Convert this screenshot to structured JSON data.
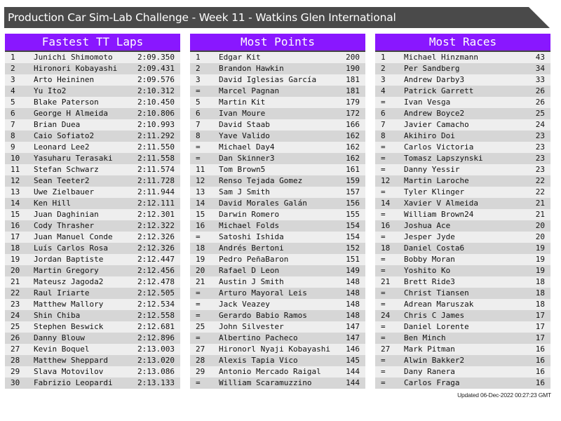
{
  "title": "Production Car Sim-Lab Challenge - Week 11 - Watkins Glen International",
  "colors": {
    "header": "#8917ff",
    "titlebar": "#4a4a4a"
  },
  "panels": [
    {
      "heading": "Fastest TT Laps",
      "rows": [
        [
          "1",
          "Junichi Shimomoto",
          "2:09.350"
        ],
        [
          "2",
          "Hironori Kobayashi",
          "2:09.431"
        ],
        [
          "3",
          "Arto Heininen",
          "2:09.576"
        ],
        [
          "4",
          "Yu Ito2",
          "2:10.312"
        ],
        [
          "5",
          "Blake Paterson",
          "2:10.450"
        ],
        [
          "6",
          "George H Almeida",
          "2:10.806"
        ],
        [
          "7",
          "Brian Duea",
          "2:10.993"
        ],
        [
          "8",
          "Caio Sofiato2",
          "2:11.292"
        ],
        [
          "9",
          "Leonard Lee2",
          "2:11.550"
        ],
        [
          "10",
          "Yasuharu Terasaki",
          "2:11.558"
        ],
        [
          "11",
          "Stefan Schwarz",
          "2:11.574"
        ],
        [
          "12",
          "Sean Teeter2",
          "2:11.728"
        ],
        [
          "13",
          "Uwe Zielbauer",
          "2:11.944"
        ],
        [
          "14",
          "Ken Hill",
          "2:12.111"
        ],
        [
          "15",
          "Juan Daghinian",
          "2:12.301"
        ],
        [
          "16",
          "Cody Thrasher",
          "2:12.322"
        ],
        [
          "17",
          "Juan Manuel Conde",
          "2:12.326"
        ],
        [
          "18",
          "Luís Carlos Rosa",
          "2:12.326"
        ],
        [
          "19",
          "Jordan Baptiste",
          "2:12.447"
        ],
        [
          "20",
          "Martin Gregory",
          "2:12.456"
        ],
        [
          "21",
          "Mateusz Jagoda2",
          "2:12.478"
        ],
        [
          "22",
          "Raul Iriarte",
          "2:12.505"
        ],
        [
          "23",
          "Matthew Mallory",
          "2:12.534"
        ],
        [
          "24",
          "Shin Chiba",
          "2:12.558"
        ],
        [
          "25",
          "Stephen Beswick",
          "2:12.681"
        ],
        [
          "26",
          "Danny Blouw",
          "2:12.896"
        ],
        [
          "27",
          "Kevin Boquel",
          "2:13.003"
        ],
        [
          "28",
          "Matthew Sheppard",
          "2:13.020"
        ],
        [
          "29",
          "Slava Motovilov",
          "2:13.086"
        ],
        [
          "30",
          "Fabrizio Leopardi",
          "2:13.133"
        ]
      ]
    },
    {
      "heading": "Most Points",
      "rows": [
        [
          "1",
          "Edgar Kit",
          "200"
        ],
        [
          "2",
          "Brandon Hawkin",
          "190"
        ],
        [
          "3",
          "David Iglesias García",
          "181"
        ],
        [
          "=",
          "Marcel Pagnan",
          "181"
        ],
        [
          "5",
          "Martin Kit",
          "179"
        ],
        [
          "6",
          "Ivan Moure",
          "172"
        ],
        [
          "7",
          "David Staab",
          "166"
        ],
        [
          "8",
          "Yave Valido",
          "162"
        ],
        [
          "=",
          "Michael Day4",
          "162"
        ],
        [
          "=",
          "Dan Skinner3",
          "162"
        ],
        [
          "11",
          "Tom Brown5",
          "161"
        ],
        [
          "12",
          "Renso Tejada Gomez",
          "159"
        ],
        [
          "13",
          "Sam J Smith",
          "157"
        ],
        [
          "14",
          "David Morales Galán",
          "156"
        ],
        [
          "15",
          "Darwin Romero",
          "155"
        ],
        [
          "16",
          "Michael Folds",
          "154"
        ],
        [
          "=",
          "Satoshi Ishida",
          "154"
        ],
        [
          "18",
          "Andrés Bertoni",
          "152"
        ],
        [
          "19",
          "Pedro PeñaBaron",
          "151"
        ],
        [
          "20",
          "Rafael D Leon",
          "149"
        ],
        [
          "21",
          "Austin J Smith",
          "148"
        ],
        [
          "=",
          "Arturo Mayoral Leis",
          "148"
        ],
        [
          "=",
          "Jack Veazey",
          "148"
        ],
        [
          "=",
          "Gerardo Babio Ramos",
          "148"
        ],
        [
          "25",
          "John Silvester",
          "147"
        ],
        [
          "=",
          "Albertino Pacheco",
          "147"
        ],
        [
          "27",
          "Hironorl Nyaji Kobayashi",
          "146"
        ],
        [
          "28",
          "Alexis Tapia Vico",
          "145"
        ],
        [
          "29",
          "Antonio Mercado Raigal",
          "144"
        ],
        [
          "=",
          "William Scaramuzzino",
          "144"
        ]
      ]
    },
    {
      "heading": "Most Races",
      "rows": [
        [
          "1",
          "Michael Hinzmann",
          "43"
        ],
        [
          "2",
          "Per Sandberg",
          "34"
        ],
        [
          "3",
          "Andrew Darby3",
          "33"
        ],
        [
          "4",
          "Patrick Garrett",
          "26"
        ],
        [
          "=",
          "Ivan Vesga",
          "26"
        ],
        [
          "6",
          "Andrew Boyce2",
          "25"
        ],
        [
          "7",
          "Javier Camacho",
          "24"
        ],
        [
          "8",
          "Akihiro Doi",
          "23"
        ],
        [
          "=",
          "Carlos Victoria",
          "23"
        ],
        [
          "=",
          "Tomasz Lapszynski",
          "23"
        ],
        [
          "=",
          "Danny Yessir",
          "23"
        ],
        [
          "12",
          "Martin Laroche",
          "22"
        ],
        [
          "=",
          "Tyler Klinger",
          "22"
        ],
        [
          "14",
          "Xavier V Almeida",
          "21"
        ],
        [
          "=",
          "William Brown24",
          "21"
        ],
        [
          "16",
          "Joshua Ace",
          "20"
        ],
        [
          "=",
          "Jesper Jyde",
          "20"
        ],
        [
          "18",
          "Daniel Costa6",
          "19"
        ],
        [
          "=",
          "Bobby Moran",
          "19"
        ],
        [
          "=",
          "Yoshito Ko",
          "19"
        ],
        [
          "21",
          "Brett Ride3",
          "18"
        ],
        [
          "=",
          "Christ Tiansen",
          "18"
        ],
        [
          "=",
          "Adrean Maruszak",
          "18"
        ],
        [
          "24",
          "Chris C James",
          "17"
        ],
        [
          "=",
          "Daniel Lorente",
          "17"
        ],
        [
          "=",
          "Ben Minch",
          "17"
        ],
        [
          "27",
          "Mark Pitman",
          "16"
        ],
        [
          "=",
          "Alwin Bakker2",
          "16"
        ],
        [
          "=",
          "Dany Ranera",
          "16"
        ],
        [
          "=",
          "Carlos Fraga",
          "16"
        ]
      ]
    }
  ],
  "footer": "Updated 06-Dec-2022 00:27:23 GMT"
}
